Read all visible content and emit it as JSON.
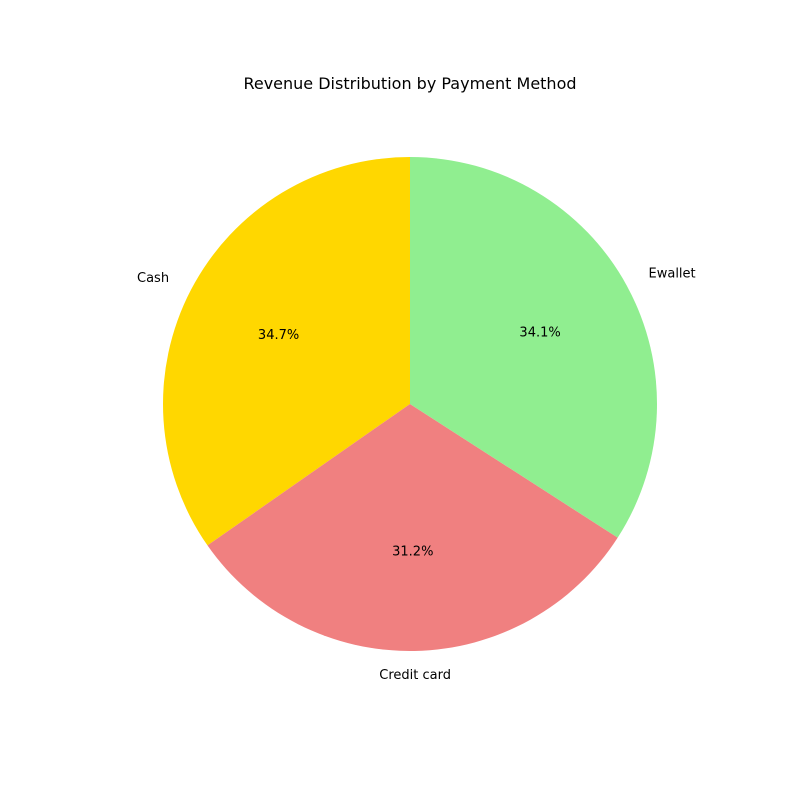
{
  "chart_data": {
    "type": "pie",
    "title": "Revenue Distribution by Payment Method",
    "categories": [
      "Cash",
      "Credit card",
      "Ewallet"
    ],
    "values": [
      34.7,
      31.2,
      34.1
    ],
    "percent_labels": [
      "34.7%",
      "31.2%",
      "34.1%"
    ],
    "colors": [
      "#ffd700",
      "#f08080",
      "#90ee90"
    ],
    "start_angle_deg": 90,
    "direction": "counterclockwise",
    "legend": "none"
  }
}
